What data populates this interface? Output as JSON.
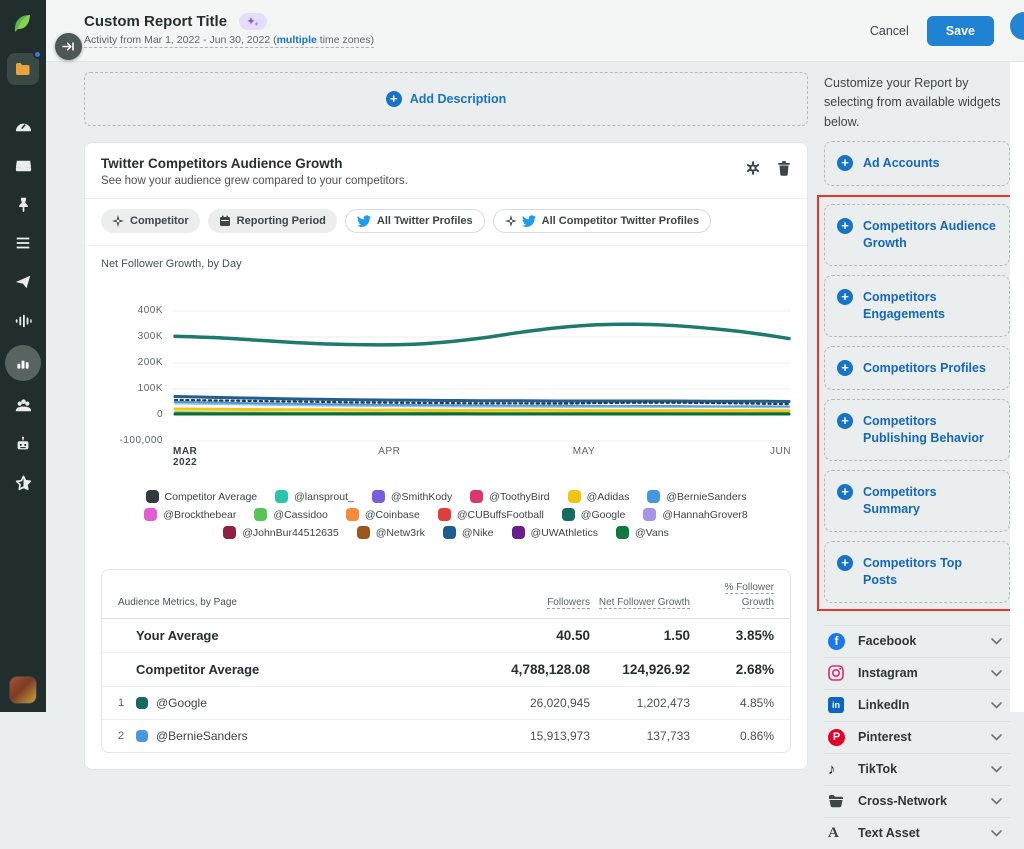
{
  "header": {
    "title": "Custom Report Title",
    "subtitle_prefix": "Activity from Mar 1, 2022 - Jun 30, 2022 (",
    "subtitle_link": "multiple",
    "subtitle_suffix": " time zones)",
    "cancel_label": "Cancel",
    "save_label": "Save"
  },
  "sidebar": {
    "icons": [
      "sprout-logo",
      "folders",
      "dashboard",
      "inbox",
      "pin",
      "tasks",
      "publishing",
      "listening",
      "reports",
      "people",
      "bot",
      "reviews",
      "user-avatar"
    ]
  },
  "main": {
    "add_description_label": "Add Description",
    "widget": {
      "title": "Twitter Competitors Audience Growth",
      "subtitle": "See how your audience grew compared to your competitors.",
      "filters": [
        {
          "label": "Competitor",
          "icon": "competitor-icon",
          "style": "gray"
        },
        {
          "label": "Reporting Period",
          "icon": "calendar-icon",
          "style": "gray"
        },
        {
          "label": "All Twitter Profiles",
          "icon": "twitter-icon",
          "style": "outline"
        },
        {
          "label": "All Competitor Twitter Profiles",
          "icon": "competitor-twitter-icon",
          "style": "outline"
        }
      ],
      "chart_title": "Net Follower Growth, by Day",
      "legend": [
        {
          "name": "Competitor Average",
          "color": "#323a3d"
        },
        {
          "name": "@lansprout_",
          "color": "#2bc4ad"
        },
        {
          "name": "@SmithKody",
          "color": "#7c5ddb"
        },
        {
          "name": "@ToothyBird",
          "color": "#d9376e"
        },
        {
          "name": "@Adidas",
          "color": "#f2c40f"
        },
        {
          "name": "@BernieSanders",
          "color": "#4598e0"
        },
        {
          "name": "@Brockthebear",
          "color": "#e25ed3"
        },
        {
          "name": "@Cassidoo",
          "color": "#57c556"
        },
        {
          "name": "@Coinbase",
          "color": "#f58a3a"
        },
        {
          "name": "@CUBuffsFootball",
          "color": "#e03e3e"
        },
        {
          "name": "@Google",
          "color": "#156b60"
        },
        {
          "name": "@HannahGrover8",
          "color": "#a693ea"
        },
        {
          "name": "@JohnBur44512635",
          "color": "#8e2043"
        },
        {
          "name": "@Netw3rk",
          "color": "#99571c"
        },
        {
          "name": "@Nike",
          "color": "#1f5d95"
        },
        {
          "name": "@UWAthletics",
          "color": "#6b1f8e"
        },
        {
          "name": "@Vans",
          "color": "#0e7a3c"
        }
      ],
      "table": {
        "title": "Audience Metrics, by Page",
        "columns": [
          "Followers",
          "Net Follower Growth",
          "% Follower Growth"
        ],
        "rows": [
          {
            "rank": "",
            "swatch": "",
            "name": "Your Average",
            "bold": true,
            "bar_pct": 0,
            "followers": "40.50",
            "net_growth": "1.50",
            "pct_growth": "3.85%"
          },
          {
            "rank": "",
            "swatch": "",
            "name": "Competitor Average",
            "bold": true,
            "bar_pct": 19,
            "followers": "4,788,128.08",
            "net_growth": "124,926.92",
            "pct_growth": "2.68%"
          },
          {
            "rank": "1",
            "swatch": "#156b60",
            "name": "@Google",
            "bold": false,
            "bar_pct": 100,
            "followers": "26,020,945",
            "net_growth": "1,202,473",
            "pct_growth": "4.85%"
          },
          {
            "rank": "2",
            "swatch": "#4598e0",
            "name": "@BernieSanders",
            "bold": false,
            "bar_pct": 61,
            "followers": "15,913,973",
            "net_growth": "137,733",
            "pct_growth": "0.86%"
          }
        ]
      }
    }
  },
  "chart_data": {
    "type": "line",
    "title": "Net Follower Growth, by Day",
    "xlabel": "",
    "ylabel": "",
    "ylim": [
      -100000,
      400000
    ],
    "grid": true,
    "legend_position": "bottom",
    "y_ticks": [
      {
        "label": "400K",
        "value": 400
      },
      {
        "label": "300K",
        "value": 300
      },
      {
        "label": "200K",
        "value": 200
      },
      {
        "label": "100K",
        "value": 100
      },
      {
        "label": "0",
        "value": 0
      },
      {
        "label": "-100,000",
        "value": -100
      }
    ],
    "x_ticks": [
      {
        "label": "MAR",
        "sub": "2022",
        "pos": 0
      },
      {
        "label": "APR",
        "sub": "",
        "pos": 0.35
      },
      {
        "label": "MAY",
        "sub": "",
        "pos": 0.665
      },
      {
        "label": "JUN",
        "sub": "",
        "pos": 1
      }
    ],
    "unit": "thousands of followers",
    "series": [
      {
        "name": "@Google",
        "color": "#1c7a6e",
        "width": 3.5,
        "dash": null,
        "values": [
          303,
          298,
          289,
          280,
          273,
          270,
          271,
          280,
          296,
          318,
          336,
          347,
          349,
          344,
          332,
          316,
          294
        ]
      },
      {
        "name": "@Nike",
        "color": "#1f5d95",
        "width": 3,
        "dash": null,
        "values": [
          71,
          68,
          65,
          62,
          60,
          58,
          57,
          56,
          55,
          55,
          54,
          54,
          54,
          54,
          53,
          53,
          52
        ]
      },
      {
        "name": "Competitor Average",
        "color": "#323a3d",
        "width": 2.2,
        "dash": "2.5 3.5",
        "values": [
          58,
          56,
          54,
          52,
          50,
          48,
          47,
          46,
          45,
          45,
          44,
          46,
          47,
          47,
          46,
          44,
          42
        ]
      },
      {
        "name": "@BernieSanders",
        "color": "#4598e0",
        "width": 2.2,
        "dash": null,
        "values": [
          50,
          48,
          45,
          43,
          41,
          39,
          38,
          37,
          36,
          35,
          35,
          34,
          34,
          34,
          33,
          33,
          32
        ]
      },
      {
        "name": "line-light-blue",
        "color": "#8ec4ee",
        "width": 1.4,
        "dash": null,
        "values": [
          43,
          41,
          39,
          37,
          35,
          34,
          33,
          32,
          31,
          31,
          30,
          30,
          30,
          29,
          29,
          29,
          28
        ]
      },
      {
        "name": "@Adidas",
        "color": "#f2c40f",
        "width": 3,
        "dash": null,
        "values": [
          23,
          22,
          21,
          20,
          20,
          19,
          19,
          18,
          18,
          18,
          18,
          17,
          17,
          17,
          17,
          17,
          16
        ]
      },
      {
        "name": "@Cassidoo",
        "color": "#4cb05a",
        "width": 1.6,
        "dash": null,
        "values": [
          11,
          10,
          10,
          9,
          9,
          9,
          9,
          9,
          8,
          8,
          8,
          8,
          8,
          8,
          8,
          8,
          8
        ]
      },
      {
        "name": "@Vans",
        "color": "#0e6b34",
        "width": 3,
        "dash": null,
        "values": [
          4,
          4,
          4,
          4,
          4,
          4,
          4,
          4,
          4,
          4,
          4,
          4,
          4,
          4,
          4,
          4,
          4
        ]
      }
    ]
  },
  "panel": {
    "intro": "Customize your Report by selecting from available widgets below.",
    "widget_buttons": [
      {
        "label": "Ad Accounts",
        "highlighted": false
      },
      {
        "label": "Competitors Audience Growth",
        "highlighted": true
      },
      {
        "label": "Competitors Engagements",
        "highlighted": true
      },
      {
        "label": "Competitors Profiles",
        "highlighted": true
      },
      {
        "label": "Competitors Publishing Behavior",
        "highlighted": true
      },
      {
        "label": "Competitors Summary",
        "highlighted": true
      },
      {
        "label": "Competitors Top Posts",
        "highlighted": true
      }
    ],
    "networks": [
      {
        "label": "Facebook",
        "icon": "facebook-icon"
      },
      {
        "label": "Instagram",
        "icon": "instagram-icon"
      },
      {
        "label": "LinkedIn",
        "icon": "linkedin-icon"
      },
      {
        "label": "Pinterest",
        "icon": "pinterest-icon"
      },
      {
        "label": "TikTok",
        "icon": "tiktok-icon"
      },
      {
        "label": "Cross-Network",
        "icon": "cross-network-icon"
      },
      {
        "label": "Text Asset",
        "icon": "text-asset-icon"
      }
    ]
  },
  "colors": {
    "accent_blue": "#1673c9",
    "save_blue": "#1f82d2",
    "bar_teal": "#2ec9a7",
    "highlight_red": "#e8382e",
    "rail_bg": "#212e2d"
  }
}
